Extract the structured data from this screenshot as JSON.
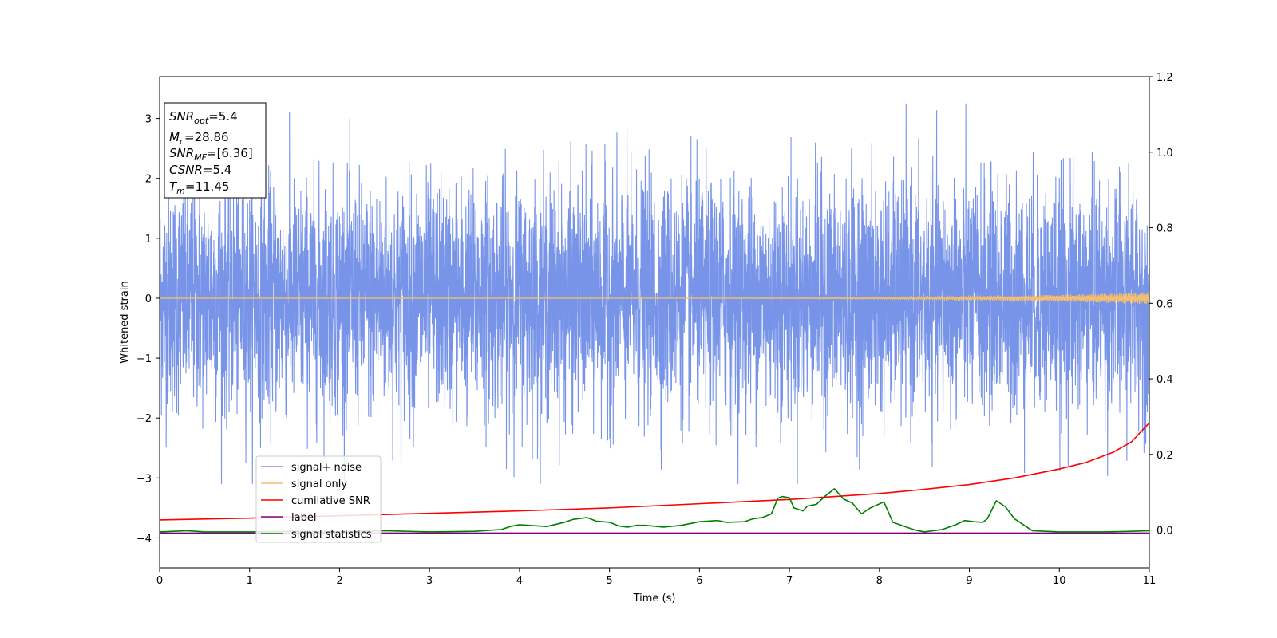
{
  "chart_data": {
    "type": "line",
    "xlabel": "Time (s)",
    "ylabel": "Whitened strain",
    "xlim": [
      0,
      11
    ],
    "ylim_left": [
      -4.5,
      3.7
    ],
    "ylim_right": [
      -0.1,
      1.2
    ],
    "xticks": [
      "0",
      "1",
      "2",
      "3",
      "4",
      "5",
      "6",
      "7",
      "8",
      "9",
      "10",
      "11"
    ],
    "yticks_left": [
      "−4",
      "−3",
      "−2",
      "−1",
      "0",
      "1",
      "2",
      "3"
    ],
    "yticks_right": [
      "0.0",
      "0.2",
      "0.4",
      "0.6",
      "0.8",
      "1.0",
      "1.2"
    ],
    "legend_position": "lower-left",
    "grid": false,
    "annotation": {
      "lines": [
        {
          "sym": "SNR",
          "sub": "opt",
          "val": "=5.4"
        },
        {
          "sym": "M",
          "sub": "c",
          "val": "=28.86"
        },
        {
          "sym": "SNR",
          "sub": "MF",
          "val": "=[6.36]"
        },
        {
          "sym": "CSNR",
          "sub": "",
          "val": "=5.4"
        },
        {
          "sym": "T",
          "sub": "m",
          "val": "=11.45"
        }
      ]
    },
    "series": [
      {
        "name": "signal+ noise",
        "color": "#7894e8",
        "axis": "left",
        "description_range": [
          -3.1,
          3.25
        ]
      },
      {
        "name": "signal only",
        "color": "#f5bf6b",
        "axis": "left",
        "amplitude_start": 0.0,
        "amplitude_end": 0.1
      },
      {
        "name": "cumilative SNR",
        "color": "#ff0000",
        "axis": "left",
        "x": [
          0,
          1,
          2,
          3,
          4,
          5,
          6,
          7,
          8,
          8.5,
          9,
          9.5,
          10,
          10.3,
          10.6,
          10.8,
          11
        ],
        "y": [
          -3.7,
          -3.67,
          -3.63,
          -3.59,
          -3.55,
          -3.5,
          -3.43,
          -3.36,
          -3.26,
          -3.19,
          -3.11,
          -3.0,
          -2.85,
          -2.74,
          -2.57,
          -2.4,
          -2.08
        ]
      },
      {
        "name": "label",
        "color": "#800080",
        "axis": "left",
        "x": [
          0,
          11
        ],
        "y": [
          -3.92,
          -3.92
        ]
      },
      {
        "name": "signal statistics",
        "color": "#008000",
        "axis": "left",
        "x": [
          0,
          0.3,
          0.5,
          1.0,
          1.5,
          2.0,
          2.5,
          3.0,
          3.5,
          3.8,
          3.9,
          4.0,
          4.2,
          4.3,
          4.5,
          4.6,
          4.75,
          4.85,
          5.0,
          5.1,
          5.2,
          5.3,
          5.4,
          5.6,
          5.8,
          6.0,
          6.1,
          6.2,
          6.3,
          6.5,
          6.6,
          6.7,
          6.8,
          6.87,
          6.92,
          7.0,
          7.05,
          7.15,
          7.2,
          7.3,
          7.4,
          7.5,
          7.6,
          7.7,
          7.8,
          7.9,
          8.05,
          8.15,
          8.3,
          8.4,
          8.5,
          8.7,
          8.85,
          8.95,
          9.05,
          9.15,
          9.2,
          9.3,
          9.4,
          9.5,
          9.7,
          10.0,
          10.5,
          10.8,
          11.0
        ],
        "y": [
          -3.9,
          -3.88,
          -3.9,
          -3.9,
          -3.89,
          -3.9,
          -3.88,
          -3.9,
          -3.89,
          -3.86,
          -3.81,
          -3.78,
          -3.8,
          -3.81,
          -3.74,
          -3.69,
          -3.66,
          -3.72,
          -3.74,
          -3.8,
          -3.82,
          -3.79,
          -3.79,
          -3.82,
          -3.79,
          -3.73,
          -3.72,
          -3.71,
          -3.74,
          -3.73,
          -3.68,
          -3.66,
          -3.6,
          -3.34,
          -3.31,
          -3.33,
          -3.5,
          -3.55,
          -3.47,
          -3.44,
          -3.3,
          -3.18,
          -3.35,
          -3.42,
          -3.6,
          -3.5,
          -3.4,
          -3.74,
          -3.82,
          -3.87,
          -3.9,
          -3.86,
          -3.78,
          -3.71,
          -3.73,
          -3.74,
          -3.68,
          -3.38,
          -3.48,
          -3.68,
          -3.88,
          -3.9,
          -3.9,
          -3.89,
          -3.88
        ]
      }
    ]
  }
}
